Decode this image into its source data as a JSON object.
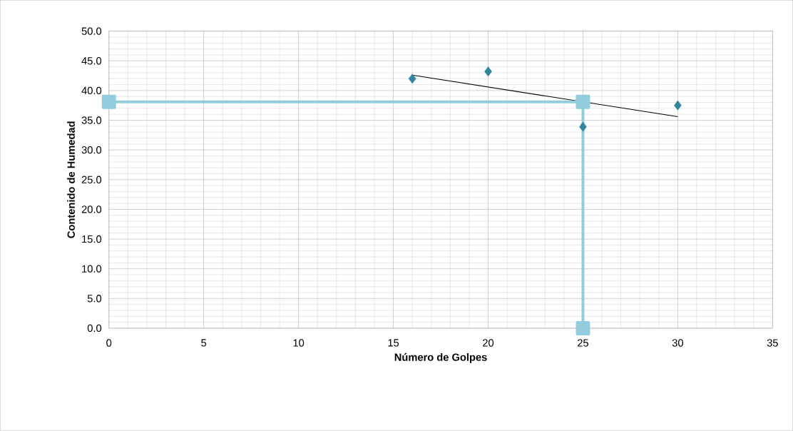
{
  "chart_data": {
    "type": "scatter",
    "xlabel": "Número de Golpes",
    "ylabel": "Contenido de Humedad",
    "xlim": [
      0,
      35
    ],
    "ylim": [
      0,
      50
    ],
    "xticks": [
      0,
      5,
      10,
      15,
      20,
      25,
      30,
      35
    ],
    "yticks": [
      {
        "value": 0,
        "label": "0.0"
      },
      {
        "value": 5,
        "label": "5.0"
      },
      {
        "value": 10,
        "label": "10.0"
      },
      {
        "value": 15,
        "label": "15.0"
      },
      {
        "value": 20,
        "label": "20.0"
      },
      {
        "value": 25,
        "label": "25.0"
      },
      {
        "value": 30,
        "label": "30.0"
      },
      {
        "value": 35,
        "label": "35.0"
      },
      {
        "value": 40,
        "label": "40.0"
      },
      {
        "value": 45,
        "label": "45.0"
      },
      {
        "value": 50,
        "label": "50.0"
      }
    ],
    "grid": true,
    "series": [
      {
        "color": "#31859c",
        "marker": "diamond",
        "x": [
          16,
          20,
          25,
          30
        ],
        "values": [
          42.0,
          43.2,
          33.9,
          37.5
        ]
      },
      {
        "type": "line",
        "color": "#000000",
        "marker": "none",
        "x": [
          16,
          30
        ],
        "values": [
          42.6,
          35.6
        ]
      },
      {
        "type": "line",
        "color": "#93cddd",
        "marker": "square",
        "x": [
          0,
          25,
          25
        ],
        "values": [
          38.1,
          38.1,
          0
        ]
      }
    ]
  }
}
